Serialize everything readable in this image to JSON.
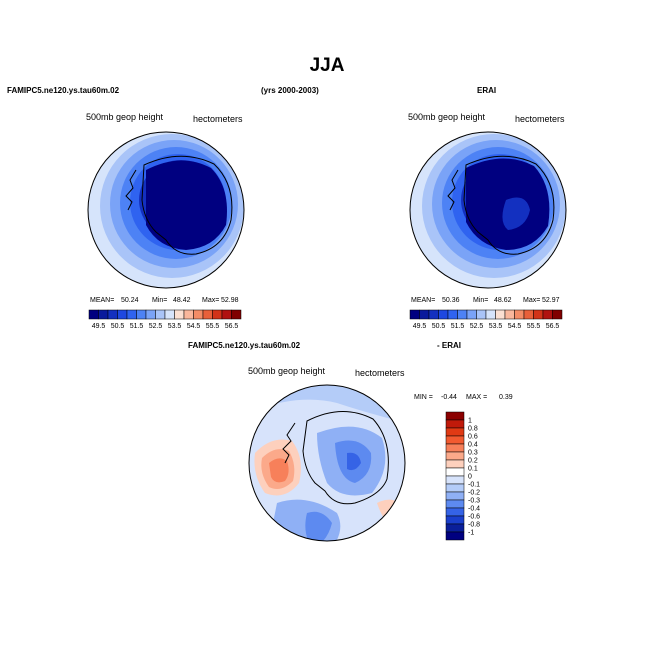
{
  "figure": {
    "title": "JJA",
    "model_name": "FAMIPC5.ne120.ys.tau60m.02",
    "years": "(yrs 2000-2003)",
    "obs_name": "ERAI",
    "diff_model_name": "FAMIPC5.ne120.ys.tau60m.02",
    "diff_obs_name": "- ERAI"
  },
  "chart_data": [
    {
      "type": "heatmap",
      "projection": "south polar stereographic",
      "title": "FAMIPC5.ne120.ys.tau60m.02",
      "variable": "500mb geop height",
      "units": "hectometers",
      "stats": {
        "mean_label": "MEAN=",
        "mean": "50.24",
        "min_label": "Min=",
        "min": "48.42",
        "max_label": "Max=",
        "max": "52.98"
      },
      "levels": [
        "49.5",
        "50.5",
        "51.5",
        "52.5",
        "53.5",
        "54.5",
        "55.5",
        "56.5"
      ],
      "colors": [
        "#000080",
        "#0a1a9c",
        "#1330c0",
        "#1e48e0",
        "#2f63f0",
        "#4d82f5",
        "#7aa3f7",
        "#a9c4f8",
        "#d6e4fb",
        "#fbe0d2",
        "#f9b79c",
        "#f38c66",
        "#e8603a",
        "#d23319",
        "#b01210",
        "#800000"
      ]
    },
    {
      "type": "heatmap",
      "projection": "south polar stereographic",
      "title": "ERAI",
      "variable": "500mb geop height",
      "units": "hectometers",
      "stats": {
        "mean_label": "MEAN=",
        "mean": "50.36",
        "min_label": "Min=",
        "min": "48.62",
        "max_label": "Max=",
        "max": "52.97"
      },
      "levels": [
        "49.5",
        "50.5",
        "51.5",
        "52.5",
        "53.5",
        "54.5",
        "55.5",
        "56.5"
      ],
      "colors": [
        "#000080",
        "#0a1a9c",
        "#1330c0",
        "#1e48e0",
        "#2f63f0",
        "#4d82f5",
        "#7aa3f7",
        "#a9c4f8",
        "#d6e4fb",
        "#fbe0d2",
        "#f9b79c",
        "#f38c66",
        "#e8603a",
        "#d23319",
        "#b01210",
        "#800000"
      ]
    },
    {
      "type": "heatmap",
      "projection": "south polar stereographic",
      "title": "FAMIPC5.ne120.ys.tau60m.02 - ERAI",
      "variable": "500mb geop height",
      "units": "hectometers",
      "stats": {
        "min_label": "MIN =",
        "min": "-0.44",
        "max_label": "MAX =",
        "max": "0.39"
      },
      "levels": [
        "1",
        "0.8",
        "0.6",
        "0.4",
        "0.3",
        "0.2",
        "0.1",
        "0",
        "-0.1",
        "-0.2",
        "-0.3",
        "-0.4",
        "-0.6",
        "-0.8",
        "-1"
      ],
      "colors": [
        "#8b0000",
        "#c01a0a",
        "#e03a14",
        "#f25a30",
        "#f7805a",
        "#fba98a",
        "#fdd0bd",
        "#ffffff",
        "#d7e3fb",
        "#b4ccf8",
        "#8fb0f5",
        "#5d8af0",
        "#3563e6",
        "#1a3fcc",
        "#0a1f9a",
        "#000080"
      ]
    }
  ]
}
